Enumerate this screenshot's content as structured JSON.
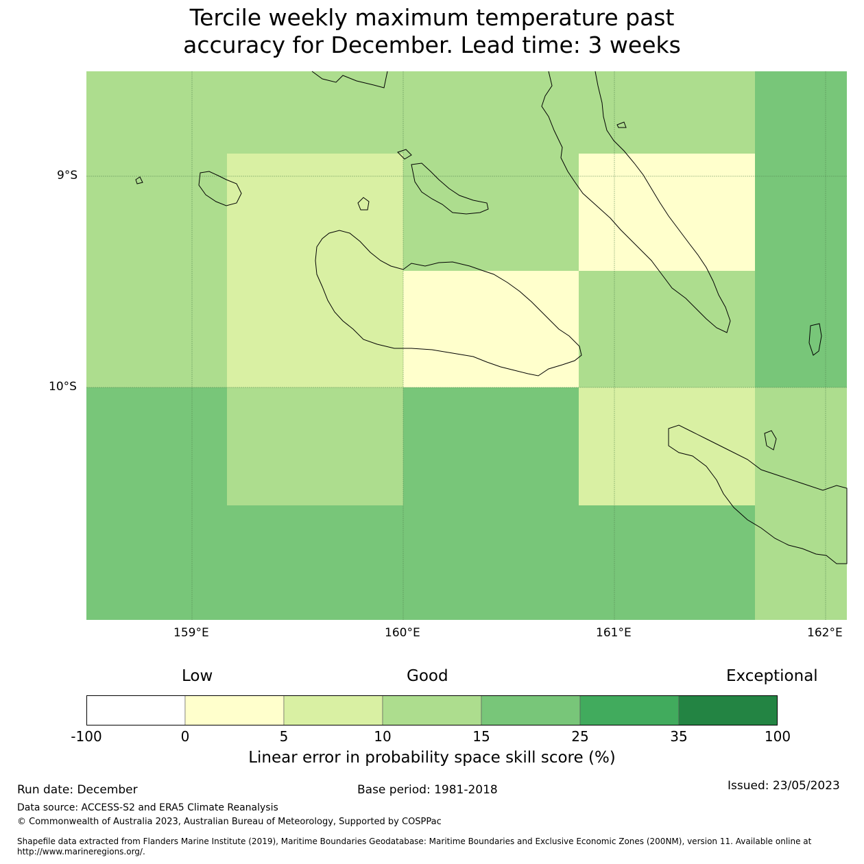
{
  "title_line1": "Tercile weekly maximum temperature past",
  "title_line2": "accuracy for December. Lead time: 3 weeks",
  "map": {
    "lat_labels": [
      "9°S",
      "10°S"
    ],
    "lon_labels": [
      "159°E",
      "160°E",
      "161°E",
      "162°E"
    ],
    "grid_colors": [
      "#ffffcc",
      "#d9f0a3",
      "#addd8e",
      "#78c679"
    ],
    "cells": [
      [
        "c2",
        "c2",
        "c2",
        "c2",
        "c3"
      ],
      [
        "c2",
        "c1",
        "c2",
        "c0",
        "c3"
      ],
      [
        "c2",
        "c1",
        "c0",
        "c2",
        "c3"
      ],
      [
        "c3",
        "c2",
        "c3",
        "c1",
        "c2"
      ],
      [
        "c3",
        "c3",
        "c3",
        "c3",
        "c2"
      ]
    ]
  },
  "colorbar": {
    "category_labels": [
      "Low",
      "Good",
      "Exceptional"
    ],
    "bins": [
      {
        "from": "-100",
        "to": "0",
        "color": "#ffffff"
      },
      {
        "from": "0",
        "to": "5",
        "color": "#ffffcc"
      },
      {
        "from": "5",
        "to": "10",
        "color": "#d9f0a3"
      },
      {
        "from": "10",
        "to": "15",
        "color": "#addd8e"
      },
      {
        "from": "15",
        "to": "25",
        "color": "#78c679"
      },
      {
        "from": "25",
        "to": "35",
        "color": "#41ab5d"
      },
      {
        "from": "35",
        "to": "100",
        "color": "#238443"
      }
    ],
    "tick_labels": [
      "-100",
      "0",
      "5",
      "10",
      "15",
      "25",
      "35",
      "100"
    ],
    "title": "Linear error in probability space skill score (%)"
  },
  "footer": {
    "run_date": "Run date: December",
    "base_period": "Base period: 1981-2018",
    "issued": "Issued: 23/05/2023",
    "data_source": "Data source: ACCESS-S2 and ERA5 Climate Reanalysis",
    "copyright": "© Commonwealth of Australia 2023, Australian Bureau of Meteorology, Supported by COSPPac",
    "shapefile_1": "Shapefile data extracted from Flanders Marine Institute (2019), Maritime Boundaries Geodatabase: Maritime Boundaries and Exclusive Economic Zones (200NM), version 11. Available online at",
    "shapefile_2": "http://www.marineregions.org/."
  }
}
